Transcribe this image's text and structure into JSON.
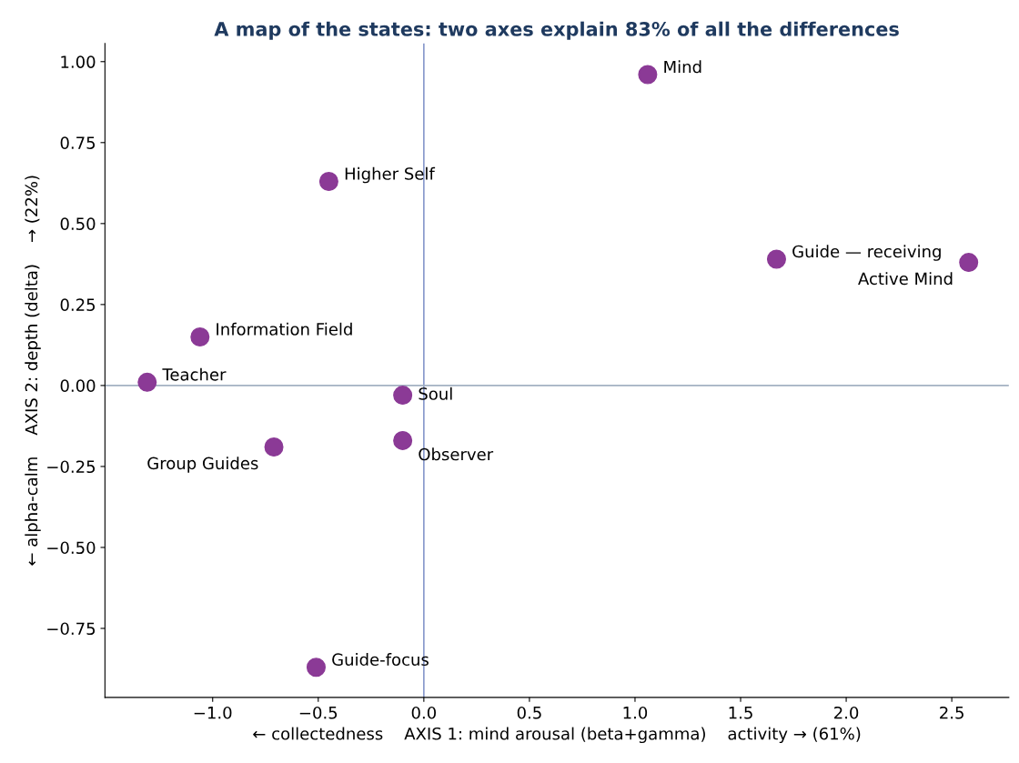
{
  "chart_data": {
    "type": "scatter",
    "title": "A map of the states: two axes explain 83% of all the differences",
    "xlabel": "← collectedness    AXIS 1: mind arousal (beta+gamma)    activity → (61%)",
    "ylabel": "← alpha-calm    AXIS 2: depth (delta)    → (22%)",
    "series": [
      {
        "color": "#8b3a96",
        "x": [
          1.06,
          -0.45,
          1.67,
          2.58,
          -1.06,
          -1.31,
          -0.1,
          -0.1,
          -0.71,
          -0.51
        ],
        "values": [
          0.96,
          0.63,
          0.39,
          0.38,
          0.15,
          0.01,
          -0.03,
          -0.17,
          -0.19,
          -0.87
        ]
      }
    ],
    "marker": "circle",
    "annotations": [
      {
        "text": "Mind",
        "x": 1.06,
        "y": 0.96
      },
      {
        "text": "Higher Self",
        "x": -0.45,
        "y": 0.63
      },
      {
        "text": "Guide — receiving",
        "x": 1.67,
        "y": 0.39
      },
      {
        "text": "Active Mind",
        "x": 2.58,
        "y": 0.38
      },
      {
        "text": "Information Field",
        "x": -1.06,
        "y": 0.15
      },
      {
        "text": "Teacher",
        "x": -1.31,
        "y": 0.01
      },
      {
        "text": "Soul",
        "x": -0.1,
        "y": -0.03
      },
      {
        "text": "Observer",
        "x": -0.1,
        "y": -0.17
      },
      {
        "text": "Group Guides",
        "x": -0.71,
        "y": -0.19
      },
      {
        "text": "Guide-focus",
        "x": -0.51,
        "y": -0.87
      }
    ],
    "ref_lines": [
      {
        "axis": "x",
        "value": 0,
        "color": "#8899cc"
      },
      {
        "axis": "y",
        "value": 0,
        "color": "#a3b1c2"
      }
    ],
    "xlim": [
      -1.51,
      2.77
    ],
    "ylim": [
      -0.963,
      1.056
    ],
    "xticks": [
      {
        "value": -1.0,
        "label": "−1.0"
      },
      {
        "value": -0.5,
        "label": "−0.5"
      },
      {
        "value": 0,
        "label": "0.0"
      },
      {
        "value": 0.5,
        "label": "0.5"
      },
      {
        "value": 1.0,
        "label": "1.0"
      },
      {
        "value": 1.5,
        "label": "1.5"
      },
      {
        "value": 2.0,
        "label": "2.0"
      },
      {
        "value": 2.5,
        "label": "2.5"
      }
    ],
    "yticks": [
      {
        "value": -0.75,
        "label": "−0.75"
      },
      {
        "value": -0.5,
        "label": "−0.50"
      },
      {
        "value": -0.25,
        "label": "−0.25"
      },
      {
        "value": 0,
        "label": "0.00"
      },
      {
        "value": 0.25,
        "label": "0.25"
      },
      {
        "value": 0.5,
        "label": "0.50"
      },
      {
        "value": 0.75,
        "label": "0.75"
      },
      {
        "value": 1.0,
        "label": "1.00"
      }
    ],
    "grid": false,
    "legend": false
  }
}
